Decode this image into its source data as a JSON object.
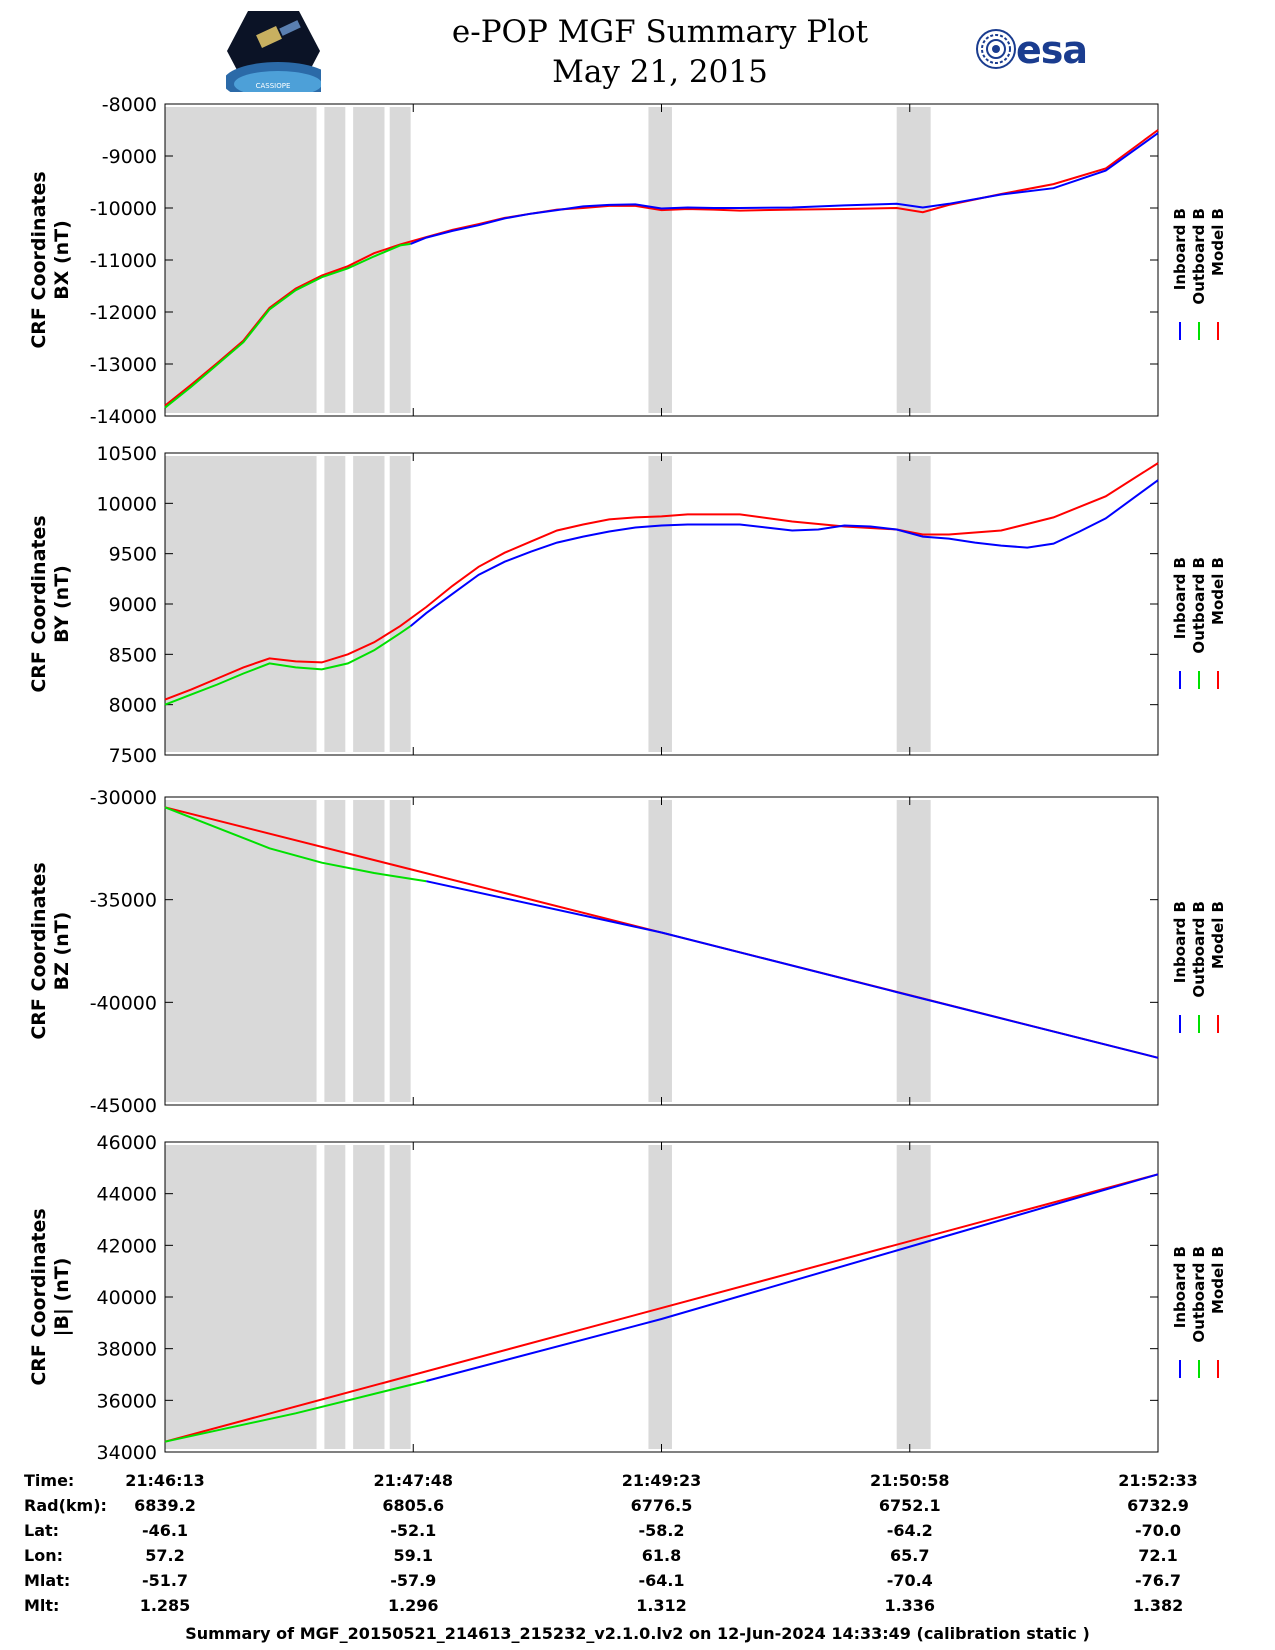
{
  "header": {
    "title_line1": "e-POP MGF Summary Plot",
    "title_line2": "May 21, 2015",
    "logo_left_text": "CASSIOPE",
    "logo_right_text": "esa"
  },
  "colors": {
    "inboard": "#0000ff",
    "outboard": "#00e000",
    "model": "#ff0000",
    "gap": "#d9d9d9"
  },
  "legend": [
    "Inboard B",
    "Outboard B",
    "Model B"
  ],
  "chart_data": [
    {
      "type": "line",
      "name": "bx",
      "ylabel_line1": "CRF Coordinates",
      "ylabel_line2": "BX (nT)",
      "ylim": [
        -14000,
        -8000
      ],
      "yticks": [
        "-8000",
        "-9000",
        "-10000",
        "-11000",
        "-12000",
        "-13000",
        "-14000"
      ],
      "x_range_s": [
        0,
        380
      ],
      "grey_spans_s": [
        [
          0,
          58
        ],
        [
          61,
          69
        ],
        [
          72,
          84
        ],
        [
          86,
          94
        ],
        [
          185,
          194
        ],
        [
          280,
          293
        ]
      ],
      "series": [
        {
          "name": "Model B",
          "t": [
            0,
            10,
            20,
            30,
            40,
            50,
            60,
            70,
            80,
            90,
            100,
            110,
            120,
            130,
            140,
            150,
            160,
            170,
            180,
            190,
            200,
            210,
            220,
            240,
            260,
            280,
            290,
            300,
            320,
            340,
            360,
            380
          ],
          "values": [
            -13800,
            -13400,
            -12980,
            -12550,
            -11920,
            -11550,
            -11300,
            -11120,
            -10870,
            -10700,
            -10560,
            -10420,
            -10310,
            -10190,
            -10110,
            -10030,
            -10000,
            -9960,
            -9960,
            -10040,
            -10020,
            -10030,
            -10050,
            -10030,
            -10020,
            -10000,
            -10080,
            -9940,
            -9730,
            -9540,
            -9240,
            -8500
          ]
        },
        {
          "name": "Outboard B",
          "t": [
            0,
            10,
            20,
            30,
            40,
            50,
            60,
            70,
            80,
            90,
            94
          ],
          "values": [
            -13840,
            -13440,
            -13010,
            -12580,
            -11950,
            -11580,
            -11330,
            -11160,
            -10930,
            -10720,
            -10690
          ]
        },
        {
          "name": "Inboard B",
          "t": [
            94,
            100,
            110,
            120,
            130,
            140,
            150,
            160,
            170,
            180,
            190,
            200,
            210,
            220,
            240,
            260,
            280,
            290,
            300,
            320,
            340,
            360,
            380
          ],
          "values": [
            -10690,
            -10570,
            -10440,
            -10330,
            -10200,
            -10110,
            -10040,
            -9970,
            -9940,
            -9930,
            -10010,
            -9990,
            -10000,
            -10000,
            -9990,
            -9950,
            -9920,
            -9990,
            -9920,
            -9740,
            -9620,
            -9280,
            -8560
          ]
        }
      ]
    },
    {
      "type": "line",
      "name": "by",
      "ylabel_line1": "CRF Coordinates",
      "ylabel_line2": "BY (nT)",
      "ylim": [
        7500,
        10500
      ],
      "yticks": [
        "10500",
        "10000",
        "9500",
        "9000",
        "8500",
        "8000",
        "7500"
      ],
      "x_range_s": [
        0,
        380
      ],
      "grey_spans_s": [
        [
          0,
          58
        ],
        [
          61,
          69
        ],
        [
          72,
          84
        ],
        [
          86,
          94
        ],
        [
          185,
          194
        ],
        [
          280,
          293
        ]
      ],
      "series": [
        {
          "name": "Model B",
          "t": [
            0,
            10,
            20,
            30,
            40,
            50,
            60,
            70,
            80,
            90,
            100,
            110,
            120,
            130,
            140,
            150,
            160,
            170,
            180,
            190,
            200,
            220,
            240,
            260,
            280,
            290,
            300,
            320,
            340,
            360,
            380
          ],
          "values": [
            8050,
            8150,
            8260,
            8370,
            8460,
            8430,
            8420,
            8500,
            8620,
            8780,
            8970,
            9180,
            9370,
            9510,
            9620,
            9730,
            9790,
            9840,
            9860,
            9870,
            9890,
            9890,
            9820,
            9770,
            9740,
            9690,
            9690,
            9730,
            9860,
            10070,
            10400
          ]
        },
        {
          "name": "Outboard B",
          "t": [
            0,
            10,
            20,
            30,
            40,
            50,
            60,
            70,
            80,
            90,
            94
          ],
          "values": [
            8000,
            8100,
            8200,
            8310,
            8410,
            8370,
            8350,
            8410,
            8540,
            8710,
            8780
          ]
        },
        {
          "name": "Inboard B",
          "t": [
            94,
            100,
            110,
            120,
            130,
            140,
            150,
            160,
            170,
            180,
            190,
            200,
            220,
            230,
            240,
            250,
            260,
            270,
            280,
            290,
            300,
            310,
            320,
            330,
            340,
            350,
            360,
            380
          ],
          "values": [
            8780,
            8910,
            9100,
            9290,
            9420,
            9520,
            9610,
            9670,
            9720,
            9760,
            9780,
            9790,
            9790,
            9760,
            9730,
            9740,
            9780,
            9770,
            9740,
            9670,
            9650,
            9610,
            9580,
            9560,
            9600,
            9720,
            9850,
            10230
          ]
        }
      ]
    },
    {
      "type": "line",
      "name": "bz",
      "ylabel_line1": "CRF Coordinates",
      "ylabel_line2": "BZ (nT)",
      "ylim": [
        -45000,
        -30000
      ],
      "yticks": [
        "-30000",
        "-35000",
        "-40000",
        "-45000"
      ],
      "x_range_s": [
        0,
        380
      ],
      "grey_spans_s": [
        [
          0,
          58
        ],
        [
          61,
          69
        ],
        [
          72,
          84
        ],
        [
          86,
          94
        ],
        [
          185,
          194
        ],
        [
          280,
          293
        ]
      ],
      "series": [
        {
          "name": "Model B",
          "t": [
            0,
            380
          ],
          "values": [
            -30500,
            -42700
          ]
        },
        {
          "name": "Outboard B",
          "t": [
            0,
            20,
            40,
            60,
            80,
            100
          ],
          "values": [
            -30500,
            -31500,
            -32500,
            -33200,
            -33700,
            -34100
          ]
        },
        {
          "name": "Inboard B",
          "t": [
            100,
            190,
            280,
            380
          ],
          "values": [
            -34100,
            -36600,
            -39500,
            -42700
          ]
        }
      ]
    },
    {
      "type": "line",
      "name": "btotal",
      "ylabel_line1": "CRF Coordinates",
      "ylabel_line2": "|B| (nT)",
      "ylim": [
        34000,
        46000
      ],
      "yticks": [
        "46000",
        "44000",
        "42000",
        "40000",
        "38000",
        "36000",
        "34000"
      ],
      "x_range_s": [
        0,
        380
      ],
      "grey_spans_s": [
        [
          0,
          58
        ],
        [
          61,
          69
        ],
        [
          72,
          84
        ],
        [
          86,
          94
        ],
        [
          185,
          194
        ],
        [
          280,
          293
        ]
      ],
      "series": [
        {
          "name": "Model B",
          "t": [
            0,
            380
          ],
          "values": [
            34400,
            44750
          ]
        },
        {
          "name": "Outboard B",
          "t": [
            0,
            50,
            100
          ],
          "values": [
            34400,
            35500,
            36750
          ]
        },
        {
          "name": "Inboard B",
          "t": [
            100,
            190,
            280,
            380
          ],
          "values": [
            36750,
            39150,
            41800,
            44750
          ]
        }
      ]
    }
  ],
  "info_table": {
    "labels": [
      "Time:",
      "Rad(km):",
      "Lat:",
      "Lon:",
      "Mlat:",
      "Mlt:"
    ],
    "columns": [
      [
        "21:46:13",
        "6839.2",
        "-46.1",
        "57.2",
        "-51.7",
        "1.285"
      ],
      [
        "21:47:48",
        "6805.6",
        "-52.1",
        "59.1",
        "-57.9",
        "1.296"
      ],
      [
        "21:49:23",
        "6776.5",
        "-58.2",
        "61.8",
        "-64.1",
        "1.312"
      ],
      [
        "21:50:58",
        "6752.1",
        "-64.2",
        "65.7",
        "-70.4",
        "1.336"
      ],
      [
        "21:52:33",
        "6732.9",
        "-70.0",
        "72.1",
        "-76.7",
        "1.382"
      ]
    ]
  },
  "footer": "Summary of MGF_20150521_214613_215232_v2.1.0.lv2 on 12-Jun-2024 14:33:49 (calibration static )"
}
